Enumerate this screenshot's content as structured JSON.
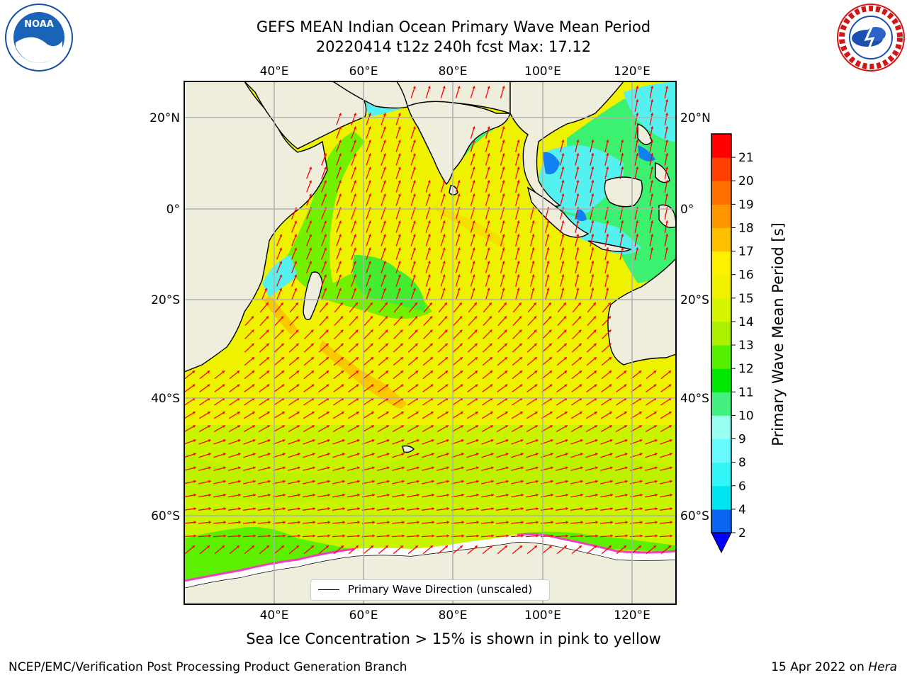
{
  "title": {
    "line1": "GEFS MEAN Indian Ocean Primary Wave Mean Period",
    "line2": "20220414 t12z 240h fcst   Max: 17.12"
  },
  "map": {
    "lon_ticks": [
      "40°E",
      "60°E",
      "80°E",
      "100°E",
      "120°E"
    ],
    "lat_ticks": [
      "20°N",
      "0°",
      "20°S",
      "40°S",
      "60°S"
    ],
    "field_colors": {
      "land": "#efeddc",
      "ocean_main": "#eef200",
      "ocean_south": "#c8f400",
      "ocean_high": "#fbd000",
      "ocean_green": "#5cf000",
      "ocean_green_light": "#3cf070",
      "ocean_cyan": "#55f0f0",
      "ocean_blue": "#1080f0",
      "sea_ice_pink": "#f040c0",
      "arrows": "#ff0000",
      "grid": "#b0b0b0"
    }
  },
  "legend": {
    "label": "Primary Wave Direction (unscaled)",
    "line_color": "#000000"
  },
  "colorbar": {
    "label": "Primary Wave Mean Period [s]",
    "levels": [
      2,
      4,
      6,
      8,
      9,
      10,
      11,
      12,
      13,
      14,
      15,
      16,
      17,
      18,
      19,
      20,
      21
    ],
    "tick_labels": [
      "2",
      "4",
      "6",
      "8",
      "9",
      "10",
      "11",
      "12",
      "13",
      "14",
      "15",
      "16",
      "17",
      "18",
      "19",
      "20",
      "21"
    ],
    "colors": [
      "#0a64f0",
      "#00e6f0",
      "#33f4f6",
      "#66faff",
      "#99fff0",
      "#44f080",
      "#00e800",
      "#55f000",
      "#aaf000",
      "#d4f400",
      "#f0f000",
      "#fff000",
      "#ffc000",
      "#ff9600",
      "#ff7000",
      "#ff4000",
      "#ff0000"
    ],
    "extend_color": "#0000ff"
  },
  "notes": {
    "sea_ice": "Sea Ice Concentration > 15% is shown in pink to yellow",
    "producer": "NCEP/EMC/Verification Post Processing Product Generation Branch",
    "date": "15 Apr 2022 on ",
    "system": "Hera"
  },
  "logos": {
    "left": "NOAA",
    "right": "NATIONAL WEATHER SERVICE"
  }
}
